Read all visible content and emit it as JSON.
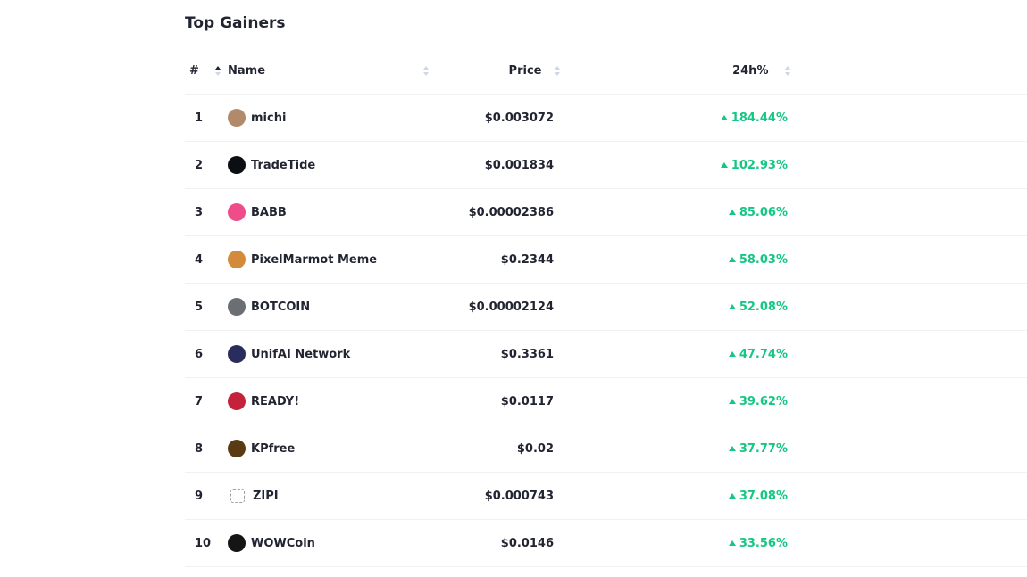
{
  "title": "Top Gainers",
  "headers": {
    "rank": "#",
    "name": "Name",
    "price": "Price",
    "change": "24h%"
  },
  "rows": [
    {
      "rank": "1",
      "name": "michi",
      "price": "$0.003072",
      "change": "184.44%",
      "logo_icon": "michi-logo-icon",
      "logo_color": "#b08a6a"
    },
    {
      "rank": "2",
      "name": "TradeTide",
      "price": "$0.001834",
      "change": "102.93%",
      "logo_icon": "tradetide-logo-icon",
      "logo_color": "#0b0f14"
    },
    {
      "rank": "3",
      "name": "BABB",
      "price": "$0.00002386",
      "change": "85.06%",
      "logo_icon": "babb-logo-icon",
      "logo_color": "#ee4d8a"
    },
    {
      "rank": "4",
      "name": "PixelMarmot Meme",
      "price": "$0.2344",
      "change": "58.03%",
      "logo_icon": "pixelmarmot-logo-icon",
      "logo_color": "#d38a3a"
    },
    {
      "rank": "5",
      "name": "BOTCOIN",
      "price": "$0.00002124",
      "change": "52.08%",
      "logo_icon": "botcoin-logo-icon",
      "logo_color": "#6b6f73"
    },
    {
      "rank": "6",
      "name": "UnifAI Network",
      "price": "$0.3361",
      "change": "47.74%",
      "logo_icon": "unifai-logo-icon",
      "logo_color": "#2a2d5c"
    },
    {
      "rank": "7",
      "name": "READY!",
      "price": "$0.0117",
      "change": "39.62%",
      "logo_icon": "ready-logo-icon",
      "logo_color": "#c4213d"
    },
    {
      "rank": "8",
      "name": "KPfree",
      "price": "$0.02",
      "change": "37.77%",
      "logo_icon": "kpfree-logo-icon",
      "logo_color": "#5a3a12"
    },
    {
      "rank": "9",
      "name": "ZIPI",
      "price": "$0.000743",
      "change": "37.08%",
      "logo_icon": "zipi-logo-icon",
      "logo_color": "#ffffff"
    },
    {
      "rank": "10",
      "name": "WOWCoin",
      "price": "$0.0146",
      "change": "33.56%",
      "logo_icon": "wowcoin-logo-icon",
      "logo_color": "#151515"
    }
  ],
  "colors": {
    "positive": "#16c784",
    "text": "#222531",
    "divider": "#eff2f5"
  }
}
